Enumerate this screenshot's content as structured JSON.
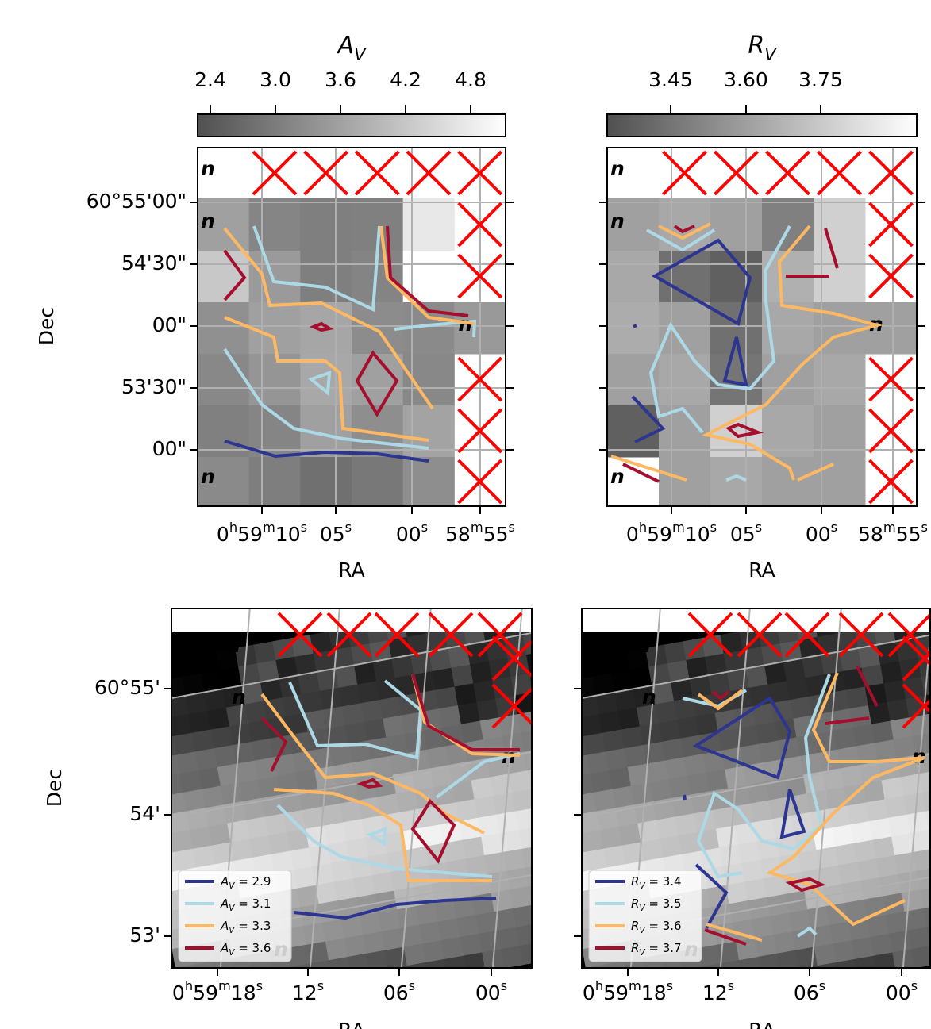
{
  "panels": [
    {
      "colorbar": {
        "label": "A_V",
        "ticks": [
          "2.4",
          "3.0",
          "3.6",
          "4.2",
          "4.8"
        ]
      },
      "ylabel": "Dec",
      "xlabel": "RA",
      "yticks": [
        "60°55'00\"",
        "54'30\"",
        "00\"",
        "53'30\"",
        "00\""
      ],
      "xticks": [
        "0h59m10s",
        "05s",
        "00s",
        "58m55s"
      ]
    },
    {
      "colorbar": {
        "label": "R_V",
        "ticks": [
          "3.45",
          "3.60",
          "3.75"
        ]
      },
      "xlabel": "RA",
      "xticks": [
        "0h59m10s",
        "05s",
        "00s",
        "58m55s"
      ]
    },
    {
      "ylabel": "Dec",
      "xlabel": "RA",
      "yticks": [
        "60°55'",
        "54'",
        "53'"
      ],
      "xticks": [
        "0h59m18s",
        "12s",
        "06s",
        "00s"
      ],
      "legend": [
        "A_V = 2.9",
        "A_V = 3.1",
        "A_V = 3.3",
        "A_V = 3.6"
      ]
    },
    {
      "xlabel": "RA",
      "xticks": [
        "0h59m18s",
        "12s",
        "06s",
        "00s"
      ],
      "legend": [
        "R_V = 3.4",
        "R_V = 3.5",
        "R_V = 3.6",
        "R_V = 3.7"
      ]
    }
  ]
}
